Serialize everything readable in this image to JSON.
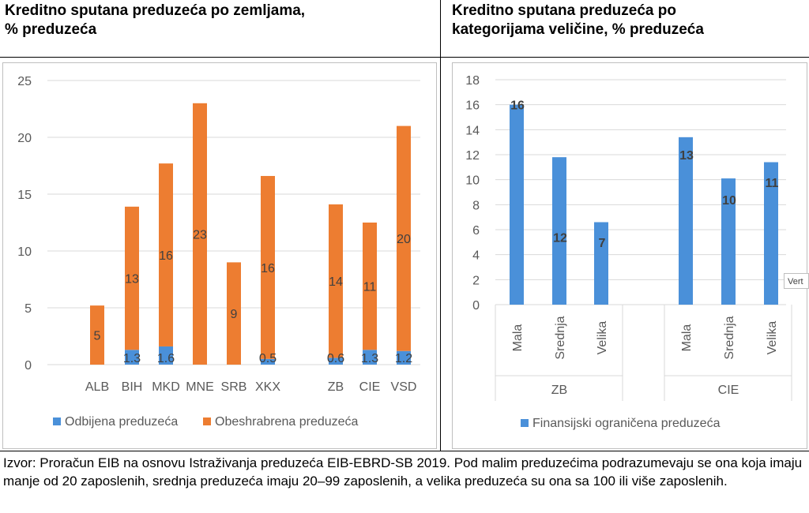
{
  "panels": {
    "left_title": "Kreditno sputana preduzeća po zemljama,\n% preduzeća",
    "right_title": "Kreditno sputana preduzeća po\nkategorijama veličine, % preduzeća"
  },
  "chart_data": [
    {
      "type": "bar",
      "stacked": true,
      "categories": [
        "ALB",
        "BIH",
        "MKD",
        "MNE",
        "SRB",
        "XKX",
        "ZB",
        "CIE",
        "VSD"
      ],
      "series": [
        {
          "name": "Odbijena preduzeća",
          "color": "#4a90d9",
          "values": [
            0,
            1.3,
            1.6,
            0,
            0,
            0.5,
            0.6,
            1.3,
            1.2
          ],
          "labels": [
            "",
            "1.3",
            "1.6",
            "",
            "",
            "0.5",
            "0.6",
            "1.3",
            "1.2"
          ]
        },
        {
          "name": "Obeshrabrena preduzeća",
          "color": "#ed7d31",
          "values": [
            5.2,
            12.6,
            16.1,
            23,
            9,
            16.1,
            13.5,
            11.2,
            19.8
          ],
          "labels": [
            "5",
            "13",
            "16",
            "23",
            "9",
            "16",
            "14",
            "11",
            "20"
          ]
        }
      ],
      "ylim": [
        0,
        25
      ],
      "yticks": [
        0,
        5,
        10,
        15,
        20,
        25
      ],
      "grid": true,
      "legend": "bottom"
    },
    {
      "type": "bar",
      "groups": [
        {
          "label": "ZB",
          "categories": [
            "Mala",
            "Srednja",
            "Velika"
          ]
        },
        {
          "label": "CIE",
          "categories": [
            "Mala",
            "Srednja",
            "Velika"
          ]
        }
      ],
      "series": [
        {
          "name": "Finansijski ograničena preduzeća",
          "color": "#4a90d9",
          "values": [
            16,
            11.8,
            6.6,
            13.4,
            10.1,
            11.4
          ],
          "labels": [
            "16",
            "12",
            "7",
            "13",
            "10",
            "11"
          ]
        }
      ],
      "ylim": [
        0,
        18
      ],
      "yticks": [
        0,
        2,
        4,
        6,
        8,
        10,
        12,
        14,
        16,
        18
      ],
      "grid": true,
      "legend": "bottom"
    }
  ],
  "source_text": "Izvor: Proračun EIB na osnovu Istraživanja preduzeća EIB-EBRD-SB 2019. Pod malim preduzećima podrazumevaju se ona koja imaju manje od 20 zaposlenih, srednja preduzeća imaju 20–99 zaposlenih, a velika preduzeća su ona sa 100 ili više zaposlenih.",
  "overlay_tag": "Vert"
}
